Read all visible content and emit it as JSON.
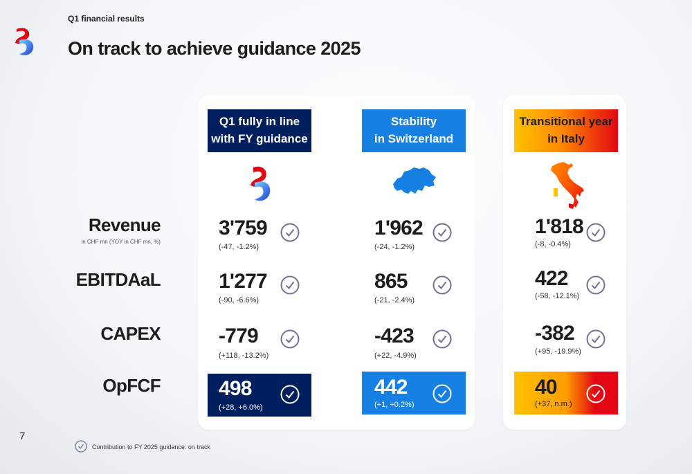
{
  "header": {
    "eyebrow": "Q1 financial results",
    "title": "On track to achieve guidance 2025"
  },
  "rows": {
    "revenue": "Revenue",
    "revenue_sub": "in CHF mn (YOY in CHF mn, %)",
    "ebitdaal": "EBITDAaL",
    "capex": "CAPEX",
    "opfcf": "OpFCF"
  },
  "columns": [
    {
      "header": "Q1 fully in line\nwith FY guidance",
      "icon": "swisscom-logo-icon",
      "revenue": {
        "value": "3'759",
        "delta": "(-47, -1.2%)"
      },
      "ebitdaal": {
        "value": "1'277",
        "delta": "(-90, -6.6%)"
      },
      "capex": {
        "value": "-779",
        "delta": "(+118, -13.2%)"
      },
      "opfcf": {
        "value": "498",
        "delta": "(+28, +6.0%)"
      }
    },
    {
      "header": "Stability\nin Switzerland",
      "icon": "switzerland-map-icon",
      "revenue": {
        "value": "1'962",
        "delta": "(-24, -1.2%)"
      },
      "ebitdaal": {
        "value": "865",
        "delta": "(-21, -2.4%)"
      },
      "capex": {
        "value": "-423",
        "delta": "(+22, -4.9%)"
      },
      "opfcf": {
        "value": "442",
        "delta": "(+1, +0.2%)"
      }
    },
    {
      "header": "Transitional year\nin Italy",
      "icon": "italy-map-icon",
      "revenue": {
        "value": "1'818",
        "delta": "(-8, -0.4%)"
      },
      "ebitdaal": {
        "value": "422",
        "delta": "(-58, -12.1%)"
      },
      "capex": {
        "value": "-382",
        "delta": "(+95, -19.9%)"
      },
      "opfcf": {
        "value": "40",
        "delta": "(+37, n.m.)"
      }
    }
  ],
  "colors": {
    "group": "#001f5e",
    "swiss": "#1781e3",
    "italy_start": "#ffc200",
    "italy_end": "#e30613",
    "check": "#6b7394"
  },
  "footer": {
    "page": "7",
    "legend": "Contribution to FY 2025 guidance: on track"
  }
}
